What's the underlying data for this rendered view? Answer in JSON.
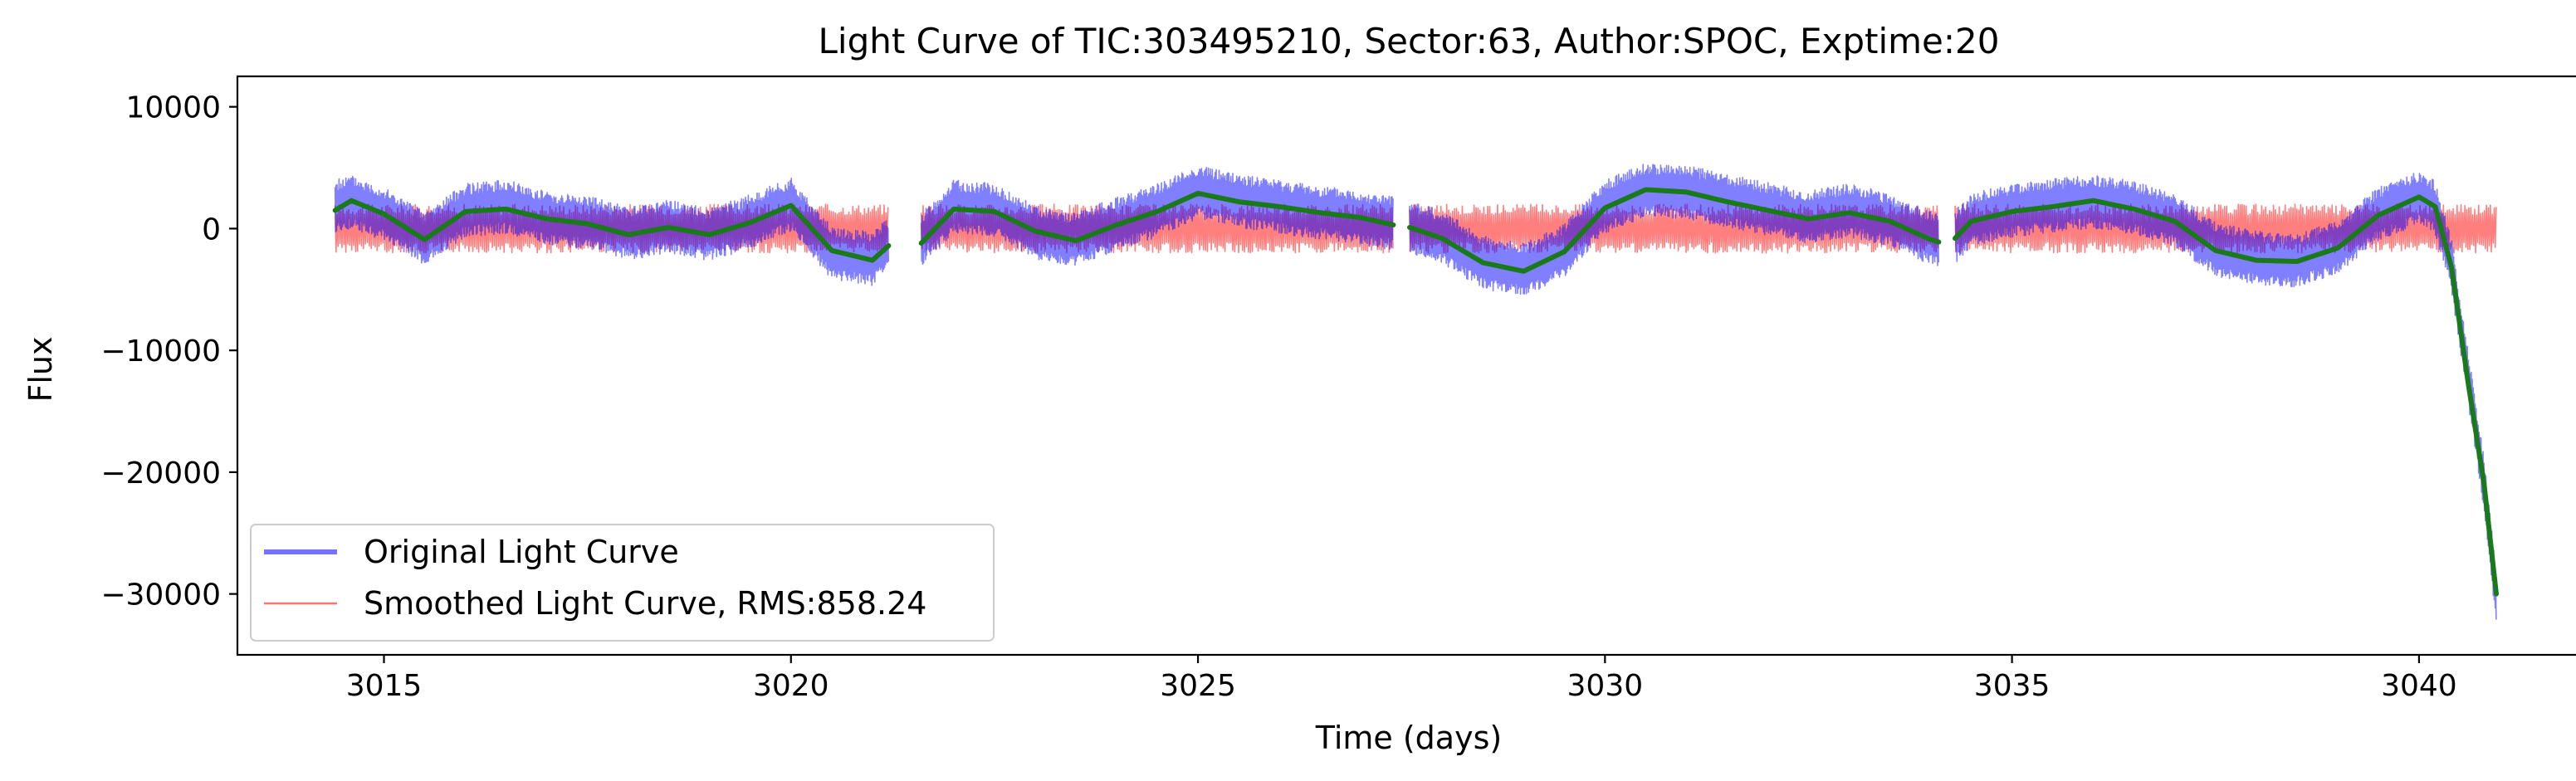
{
  "chart_data": {
    "type": "line",
    "title": "Light Curve of TIC:303495210, Sector:63, Author:SPOC, Exptime:20",
    "xlabel": "Time (days)",
    "ylabel": "Flux",
    "xlim": [
      3013.2,
      3042.0
    ],
    "ylim": [
      -35000,
      12500
    ],
    "xticks": [
      3015,
      3020,
      3025,
      3030,
      3035,
      3040
    ],
    "yticks": [
      10000,
      0,
      -10000,
      -20000,
      -30000
    ],
    "ytick_labels": [
      "10000",
      "0",
      "−10000",
      "−20000",
      "−30000"
    ],
    "grid": false,
    "legend_position": "lower-left",
    "colors": {
      "original": "#0000ff",
      "smoothed": "#ff0000",
      "trend": "#1a7a1a"
    },
    "data_gaps": [
      [
        3021.2,
        3021.6
      ],
      [
        3027.4,
        3027.6
      ],
      [
        3034.1,
        3034.3
      ]
    ],
    "series": [
      {
        "name": "Original Light Curve",
        "color": "#0000ff",
        "opacity": 0.5,
        "band_halfwidth": 2200,
        "x": [
          3014.4,
          3014.6,
          3015.0,
          3015.5,
          3016.0,
          3016.5,
          3017.0,
          3017.5,
          3018.0,
          3018.5,
          3019.0,
          3019.5,
          3020.0,
          3020.5,
          3021.0,
          3021.2,
          3021.6,
          3022.0,
          3022.5,
          3023.0,
          3023.5,
          3024.0,
          3024.5,
          3025.0,
          3025.5,
          3026.0,
          3026.5,
          3027.0,
          3027.4,
          3027.6,
          3028.0,
          3028.5,
          3029.0,
          3029.5,
          3030.0,
          3030.5,
          3031.0,
          3031.5,
          3032.0,
          3032.5,
          3033.0,
          3033.5,
          3034.0,
          3034.1,
          3034.3,
          3034.5,
          3035.0,
          3035.5,
          3036.0,
          3036.5,
          3037.0,
          3037.5,
          3038.0,
          3038.5,
          3039.0,
          3039.5,
          3040.0,
          3040.2,
          3040.4,
          3040.6,
          3040.8,
          3040.95
        ],
        "y": [
          1800,
          2200,
          1200,
          -800,
          1500,
          1800,
          900,
          500,
          -400,
          200,
          -500,
          600,
          2000,
          -2000,
          -2500,
          -1200,
          -900,
          1800,
          1500,
          -300,
          -900,
          400,
          1500,
          3000,
          2300,
          1800,
          1300,
          900,
          400,
          200,
          -700,
          -2800,
          -3400,
          -1800,
          1800,
          3200,
          3000,
          2300,
          1600,
          900,
          1500,
          700,
          -800,
          -1000,
          -700,
          700,
          1500,
          1900,
          2200,
          1700,
          700,
          -1700,
          -2400,
          -2600,
          -1500,
          1200,
          2500,
          1700,
          -3000,
          -12000,
          -21000,
          -30500
        ]
      },
      {
        "name": "Smoothed Light Curve, RMS:858.24",
        "color": "#ff0000",
        "opacity": 0.5,
        "band_halfwidth": 2000,
        "x": [
          3014.4,
          3015.0,
          3016.0,
          3017.0,
          3018.0,
          3019.0,
          3020.0,
          3021.0,
          3021.2,
          3021.6,
          3022.0,
          3023.0,
          3024.0,
          3025.0,
          3026.0,
          3027.0,
          3027.4,
          3027.6,
          3028.0,
          3029.0,
          3030.0,
          3031.0,
          3032.0,
          3033.0,
          3034.0,
          3034.1,
          3034.3,
          3035.0,
          3036.0,
          3037.0,
          3038.0,
          3039.0,
          3039.8,
          3040.0,
          3040.4,
          3040.95
        ],
        "y": [
          0,
          0,
          0,
          0,
          0,
          0,
          0,
          0,
          0,
          0,
          0,
          0,
          0,
          0,
          0,
          0,
          0,
          0,
          0,
          0,
          0,
          0,
          0,
          0,
          0,
          0,
          0,
          0,
          0,
          0,
          0,
          0,
          0,
          0,
          0,
          0
        ]
      },
      {
        "color": "#1a7a1a",
        "x": [
          3014.4,
          3014.6,
          3015.0,
          3015.5,
          3016.0,
          3016.5,
          3017.0,
          3017.5,
          3018.0,
          3018.5,
          3019.0,
          3019.5,
          3020.0,
          3020.5,
          3021.0,
          3021.2,
          3021.6,
          3022.0,
          3022.5,
          3023.0,
          3023.5,
          3024.0,
          3024.5,
          3025.0,
          3025.5,
          3026.0,
          3026.5,
          3027.0,
          3027.4,
          3027.6,
          3028.0,
          3028.5,
          3029.0,
          3029.5,
          3030.0,
          3030.5,
          3031.0,
          3031.5,
          3032.0,
          3032.5,
          3033.0,
          3033.5,
          3034.0,
          3034.1,
          3034.3,
          3034.5,
          3035.0,
          3035.5,
          3036.0,
          3036.5,
          3037.0,
          3037.5,
          3038.0,
          3038.5,
          3039.0,
          3039.5,
          3040.0,
          3040.2,
          3040.4,
          3040.6,
          3040.8,
          3040.95
        ],
        "y": [
          1500,
          2300,
          1200,
          -900,
          1400,
          1600,
          800,
          400,
          -500,
          100,
          -500,
          500,
          1900,
          -1800,
          -2600,
          -1400,
          -1200,
          1600,
          1400,
          -200,
          -1000,
          300,
          1400,
          2900,
          2200,
          1800,
          1300,
          900,
          300,
          100,
          -800,
          -2800,
          -3500,
          -1900,
          1700,
          3200,
          3000,
          2200,
          1500,
          800,
          1300,
          600,
          -900,
          -1100,
          -800,
          600,
          1400,
          1800,
          2300,
          1600,
          600,
          -1800,
          -2600,
          -2700,
          -1600,
          1100,
          2600,
          1800,
          -3200,
          -12500,
          -21000,
          -30000
        ]
      }
    ],
    "legend": [
      {
        "label": "Original Light Curve",
        "color": "#0000ff"
      },
      {
        "label": "Smoothed Light Curve, RMS:858.24",
        "color": "#ff0000"
      }
    ]
  }
}
